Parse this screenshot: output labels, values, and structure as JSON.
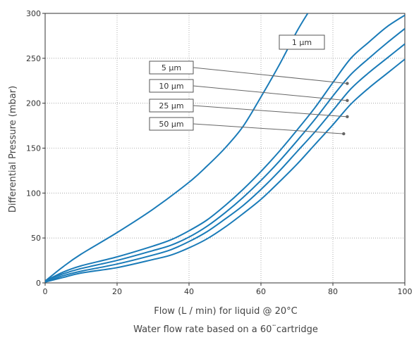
{
  "chart_data": {
    "type": "line",
    "xlabel": "Flow (L / min) for liquid @ 20°C",
    "subtitle": "Water flow rate based on a 60¨cartridge",
    "ylabel": "Differential Pressure (mbar)",
    "xlim": [
      0,
      100
    ],
    "ylim": [
      0,
      300
    ],
    "x_ticks": [
      0,
      20,
      40,
      60,
      80,
      100
    ],
    "y_ticks": [
      0,
      50,
      100,
      150,
      200,
      250,
      300
    ],
    "grid": "dotted, both axes",
    "line_color": "#1a7bb8",
    "series": [
      {
        "name": "1 µm",
        "points": [
          [
            0,
            2
          ],
          [
            5,
            18
          ],
          [
            10,
            32
          ],
          [
            20,
            56
          ],
          [
            30,
            82
          ],
          [
            40,
            112
          ],
          [
            45,
            130
          ],
          [
            50,
            150
          ],
          [
            55,
            174
          ],
          [
            60,
            207
          ],
          [
            65,
            242
          ],
          [
            70,
            280
          ],
          [
            73,
            300
          ]
        ]
      },
      {
        "name": "5 µm",
        "points": [
          [
            0,
            2
          ],
          [
            5,
            12
          ],
          [
            10,
            19
          ],
          [
            20,
            29
          ],
          [
            30,
            41
          ],
          [
            35,
            48
          ],
          [
            40,
            58
          ],
          [
            45,
            70
          ],
          [
            50,
            86
          ],
          [
            55,
            104
          ],
          [
            60,
            124
          ],
          [
            65,
            146
          ],
          [
            70,
            170
          ],
          [
            75,
            195
          ],
          [
            80,
            223
          ],
          [
            85,
            250
          ],
          [
            90,
            268
          ],
          [
            95,
            285
          ],
          [
            100,
            298
          ]
        ]
      },
      {
        "name": "10 µm",
        "points": [
          [
            0,
            2
          ],
          [
            5,
            10
          ],
          [
            10,
            16
          ],
          [
            20,
            25
          ],
          [
            30,
            36
          ],
          [
            35,
            42
          ],
          [
            40,
            51
          ],
          [
            45,
            63
          ],
          [
            50,
            78
          ],
          [
            55,
            95
          ],
          [
            60,
            114
          ],
          [
            65,
            135
          ],
          [
            70,
            158
          ],
          [
            75,
            182
          ],
          [
            80,
            208
          ],
          [
            85,
            232
          ],
          [
            90,
            250
          ],
          [
            95,
            267
          ],
          [
            100,
            283
          ]
        ]
      },
      {
        "name": "25 µm",
        "points": [
          [
            0,
            1
          ],
          [
            5,
            8
          ],
          [
            10,
            13
          ],
          [
            20,
            21
          ],
          [
            30,
            31
          ],
          [
            35,
            37
          ],
          [
            40,
            46
          ],
          [
            45,
            57
          ],
          [
            50,
            71
          ],
          [
            55,
            86
          ],
          [
            60,
            104
          ],
          [
            65,
            124
          ],
          [
            70,
            146
          ],
          [
            75,
            168
          ],
          [
            80,
            192
          ],
          [
            85,
            216
          ],
          [
            90,
            234
          ],
          [
            95,
            250
          ],
          [
            100,
            266
          ]
        ]
      },
      {
        "name": "50 µm",
        "points": [
          [
            0,
            1
          ],
          [
            5,
            6
          ],
          [
            10,
            11
          ],
          [
            20,
            17
          ],
          [
            30,
            26
          ],
          [
            35,
            31
          ],
          [
            40,
            39
          ],
          [
            45,
            49
          ],
          [
            50,
            62
          ],
          [
            55,
            77
          ],
          [
            60,
            93
          ],
          [
            65,
            112
          ],
          [
            70,
            132
          ],
          [
            75,
            154
          ],
          [
            80,
            176
          ],
          [
            85,
            199
          ],
          [
            90,
            217
          ],
          [
            95,
            233
          ],
          [
            100,
            249
          ]
        ]
      }
    ],
    "annotations": [
      {
        "label": "1 µm"
      },
      {
        "label": "5 µm",
        "arrow_to": [
          84,
          222
        ]
      },
      {
        "label": "10 µm",
        "arrow_to": [
          84,
          203
        ]
      },
      {
        "label": "25 µm",
        "arrow_to": [
          84,
          185
        ]
      },
      {
        "label": "50 µm",
        "arrow_to": [
          83,
          166
        ]
      }
    ]
  }
}
